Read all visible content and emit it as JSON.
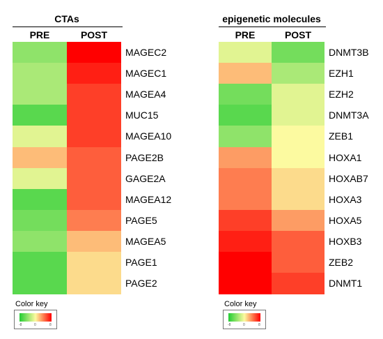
{
  "chart_data": [
    {
      "type": "heatmap",
      "title": "CTAs",
      "columns": [
        "PRE",
        "POST"
      ],
      "rows": [
        "MAGEC2",
        "MAGEC1",
        "MAGEA4",
        "MUC15",
        "MAGEA10",
        "PAGE2B",
        "GAGE2A",
        "MAGEA12",
        "PAGE5",
        "MAGEA5",
        "PAGE1",
        "PAGE2"
      ],
      "values": [
        [
          -4,
          8
        ],
        [
          -3,
          7
        ],
        [
          -3,
          6
        ],
        [
          -6,
          6
        ],
        [
          -1,
          6
        ],
        [
          2,
          5
        ],
        [
          -1,
          5
        ],
        [
          -6,
          5
        ],
        [
          -5,
          4
        ],
        [
          -4,
          2
        ],
        [
          -6,
          1
        ],
        [
          -6,
          1
        ]
      ],
      "legend_title": "Color key",
      "color_range": [
        -8,
        8
      ],
      "legend_ticks": [
        "-8",
        "0",
        "8"
      ]
    },
    {
      "type": "heatmap",
      "title": "epigenetic molecules",
      "columns": [
        "PRE",
        "POST"
      ],
      "rows": [
        "DNMT3B",
        "EZH1",
        "EZH2",
        "DNMT3A",
        "ZEB1",
        "HOXA1",
        "HOXAB7",
        "HOXA3",
        "HOXA5",
        "HOXB3",
        "ZEB2",
        "DNMT1"
      ],
      "values": [
        [
          -1,
          -5
        ],
        [
          2,
          -3
        ],
        [
          -5,
          -1
        ],
        [
          -6,
          -1
        ],
        [
          -4,
          0
        ],
        [
          3,
          0
        ],
        [
          4,
          1
        ],
        [
          4,
          1
        ],
        [
          6,
          3
        ],
        [
          7,
          5
        ],
        [
          8,
          5
        ],
        [
          8,
          6
        ]
      ],
      "legend_title": "Color key",
      "color_range": [
        -8,
        8
      ],
      "legend_ticks": [
        "-8",
        "0",
        "8"
      ]
    }
  ]
}
